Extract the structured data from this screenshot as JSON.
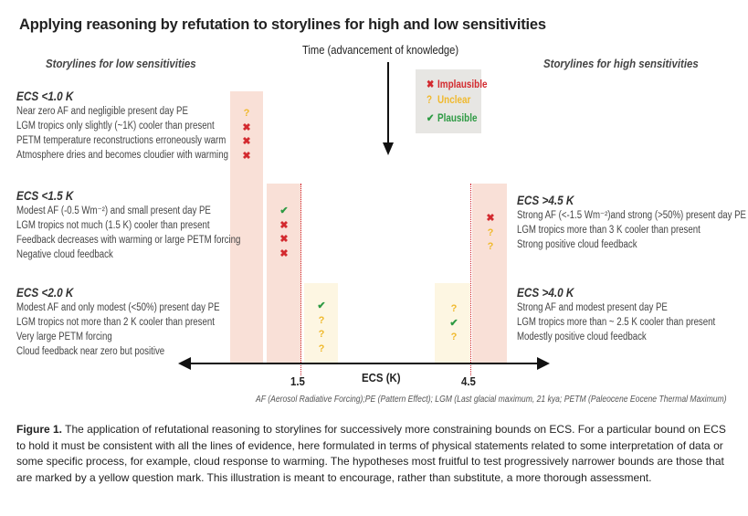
{
  "title": "Applying reasoning by refutation to storylines for high and low sensitivities",
  "time_axis": {
    "label": "Time (advancement of knowledge)"
  },
  "sections": {
    "low_header": "Storylines for low sensitivities",
    "high_header": "Storylines for high sensitivities"
  },
  "legend": {
    "items": [
      {
        "symbol": "✖",
        "label": "Implausible",
        "status": "implausible",
        "color": "#d32a2f"
      },
      {
        "symbol": "?",
        "label": "Unclear",
        "status": "unclear",
        "color": "#f0b92d"
      },
      {
        "symbol": "✔",
        "label": "Plausible",
        "status": "plausible",
        "color": "#2d9a43"
      }
    ]
  },
  "colors": {
    "implausible": "#d32a2f",
    "unclear": "#f0b92d",
    "plausible": "#2d9a43",
    "bar_red": "#f9e0d7",
    "bar_yellow": "#fdf6e2",
    "legend_bg": "#e7e6e3"
  },
  "storylines": {
    "low": [
      {
        "heading": "ECS <1.0 K",
        "lines": [
          "Near zero AF  and negligible present day PE",
          "LGM tropics only slightly (~1K) cooler than present",
          "PETM  temperature reconstructions erroneously warm",
          "Atmosphere dries and becomes cloudier with warming"
        ],
        "marks": [
          "unclear",
          "implausible",
          "implausible",
          "implausible"
        ]
      },
      {
        "heading": "ECS <1.5 K",
        "lines": [
          "Modest AF (-0.5 Wm⁻²) and small present day PE",
          "LGM tropics not much (1.5 K) cooler than present",
          "Feedback decreases with warming or large PETM forcing",
          "Negative cloud feedback"
        ],
        "marks": [
          "plausible",
          "implausible",
          "implausible",
          "implausible"
        ]
      },
      {
        "heading": "ECS <2.0 K",
        "lines": [
          "Modest AF and only modest (<50%) present day PE",
          "LGM tropics not more than 2 K cooler than present",
          "Very large PETM forcing",
          "Cloud feedback near zero but positive"
        ],
        "marks": [
          "plausible",
          "unclear",
          "unclear",
          "unclear"
        ]
      }
    ],
    "high": [
      {
        "heading": "ECS >4.5 K",
        "lines": [
          "Strong AF (<-1.5 Wm⁻²)and strong (>50%) present day PE",
          "LGM tropics more than 3 K cooler than present",
          "Strong positive cloud feedback"
        ],
        "marks": [
          "implausible",
          "unclear",
          "unclear"
        ]
      },
      {
        "heading": "ECS >4.0 K",
        "lines": [
          "Strong AF and modest present day PE",
          "LGM tropics more than ~ 2.5 K cooler than present",
          "Modestly positive cloud feedback"
        ],
        "marks": [
          "unclear",
          "plausible",
          "unclear"
        ]
      }
    ]
  },
  "ecs_axis": {
    "title": "ECS  (K)",
    "ticks": [
      "1.5",
      "4.5"
    ]
  },
  "abbreviations": "AF (Aerosol Radiative Forcing);PE (Pattern Effect); LGM (Last glacial maximum, 21 kya; PETM (Paleocene Eocene Thermal Maximum)",
  "caption": {
    "label": "Figure 1.",
    "text": "  The application of refutational reasoning to storylines for successively more constraining bounds on ECS. For a particular bound on ECS to hold it must be consistent with all the lines of evidence, here formulated in terms of physical statements related to some interpretation of data or some specific process, for example, cloud response to warming. The hypotheses most fruitful to test progressively narrower bounds are those that are marked by a yellow question mark. This illustration is meant to encourage, rather than substitute, a more thorough assessment."
  }
}
